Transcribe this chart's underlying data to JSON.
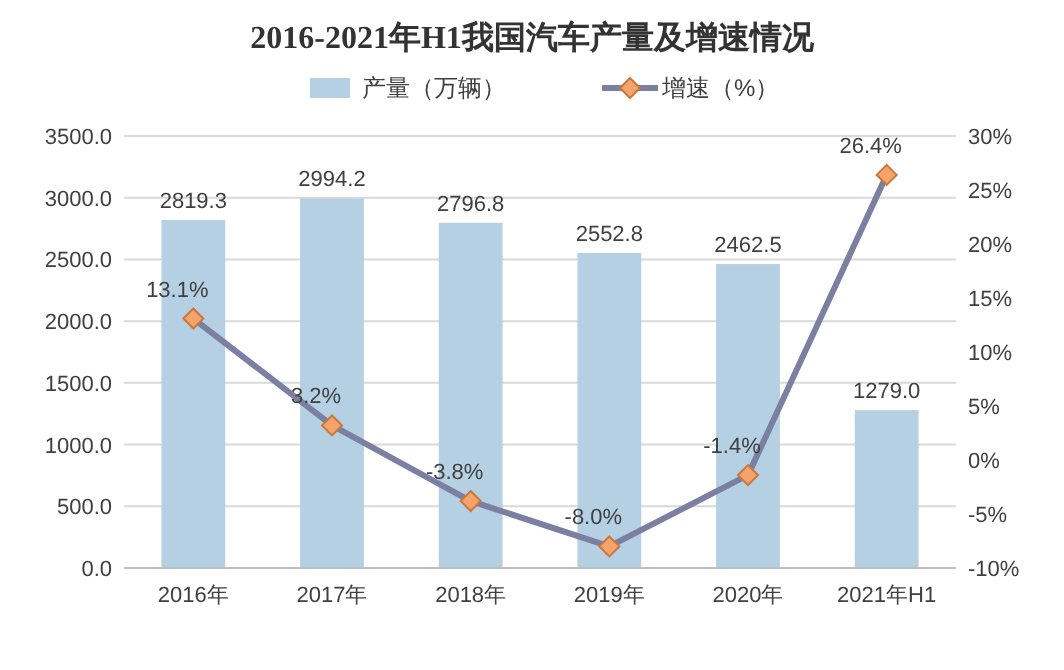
{
  "chart_data": {
    "type": "bar",
    "title": "2016-2021年H1我国汽车产量及增速情况",
    "categories": [
      "2016年",
      "2017年",
      "2018年",
      "2019年",
      "2020年",
      "2021年H1"
    ],
    "series": [
      {
        "name": "产量（万辆）",
        "color": "#b4d0e2",
        "values": [
          2819.3,
          2994.2,
          2796.8,
          2552.8,
          2462.5,
          1279.0
        ],
        "value_labels": [
          "2819.3",
          "2994.2",
          "2796.8",
          "2552.8",
          "2462.5",
          "1279.0"
        ]
      },
      {
        "name": "增速（%）",
        "type": "line",
        "axis": "y2",
        "color": "#7b80a2",
        "marker": "diamond",
        "values": [
          13.1,
          3.2,
          -3.8,
          -8.0,
          -1.4,
          26.4
        ],
        "value_labels": [
          "13.1%",
          "3.2%",
          "-3.8%",
          "-8.0%",
          "-1.4%",
          "26.4%"
        ]
      }
    ],
    "ylim": [
      0,
      3500
    ],
    "yticks": [
      {
        "value": 0,
        "label": "0.0"
      },
      {
        "value": 500,
        "label": "500.0"
      },
      {
        "value": 1000,
        "label": "1000.0"
      },
      {
        "value": 1500,
        "label": "1500.0"
      },
      {
        "value": 2000,
        "label": "2000.0"
      },
      {
        "value": 2500,
        "label": "2500.0"
      },
      {
        "value": 3000,
        "label": "3000.0"
      },
      {
        "value": 3500,
        "label": "3500.0"
      }
    ],
    "y2lim": [
      -10,
      30
    ],
    "y2ticks": [
      {
        "value": -10,
        "label": "-10%"
      },
      {
        "value": -5,
        "label": "-5%"
      },
      {
        "value": 0,
        "label": "0%"
      },
      {
        "value": 5,
        "label": "5%"
      },
      {
        "value": 10,
        "label": "10%"
      },
      {
        "value": 15,
        "label": "15%"
      },
      {
        "value": 20,
        "label": "20%"
      },
      {
        "value": 25,
        "label": "25%"
      },
      {
        "value": 30,
        "label": "30%"
      }
    ],
    "grid": "y",
    "legend": "top"
  }
}
